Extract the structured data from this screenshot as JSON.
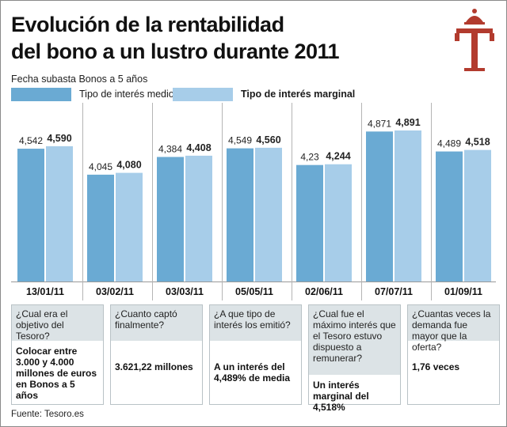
{
  "title_line1": "Evolución de la rentabilidad",
  "title_line2": "del bono a un lustro durante 2011",
  "colors": {
    "medio": "#6aaad3",
    "marginal": "#a7cde9",
    "logo": "#b23b2e"
  },
  "chart_data": {
    "type": "bar",
    "subtitle": "Fecha subasta Bonos a 5 años",
    "categories": [
      "13/01/11",
      "03/02/11",
      "03/03/11",
      "05/05/11",
      "02/06/11",
      "07/07/11",
      "01/09/11"
    ],
    "series": [
      {
        "name": "Tipo de interés medio",
        "values": [
          4.542,
          4.045,
          4.384,
          4.549,
          4.23,
          4.871,
          4.489
        ],
        "labels": [
          "4,542",
          "4,045",
          "4,384",
          "4,549",
          "4,23",
          "4,871",
          "4,489"
        ]
      },
      {
        "name": "Tipo de interés marginal",
        "values": [
          4.59,
          4.08,
          4.408,
          4.56,
          4.244,
          4.891,
          4.518
        ],
        "labels": [
          "4,590",
          "4,080",
          "4,408",
          "4,560",
          "4,244",
          "4,891",
          "4,518"
        ]
      }
    ],
    "grid": false,
    "legend": "top-left"
  },
  "qa": [
    {
      "q": "¿Cual era el objetivo del Tesoro?",
      "a": "Colocar entre 3.000 y 4.000 millones de euros en Bonos a 5 años"
    },
    {
      "q": "¿Cuanto captó finalmente?",
      "a": "3.621,22 millones"
    },
    {
      "q": "¿A que tipo de interés los emitió?",
      "a": "A un interés del 4,489% de media"
    },
    {
      "q": "¿Cual fue el máximo interés que el Tesoro estuvo dispuesto a remunerar?",
      "a": "Un interés marginal del 4,518%"
    },
    {
      "q": "¿Cuantas veces la demanda fue mayor que la oferta?",
      "a": "1,76 veces"
    }
  ],
  "source": "Fuente: Tesoro.es"
}
